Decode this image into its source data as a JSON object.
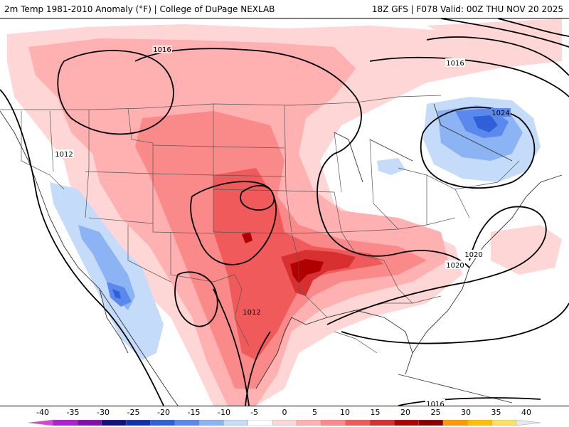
{
  "header": {
    "title_left": "2m Temp 1981-2010 Anomaly (°F) | College of DuPage NEXLAB",
    "title_right": "18Z GFS | F078 Valid: 00Z THU NOV 20 2025"
  },
  "isobar_labels": {
    "nw_1016": "1016",
    "ne_1016": "1016",
    "west_1012": "1012",
    "south_1012": "1012",
    "ne_high_1024": "1024",
    "se_1020_a": "1020",
    "se_1020_b": "1020",
    "south_1016": "1016"
  },
  "colorbar": {
    "ticks": [
      "-40",
      "-35",
      "-30",
      "-25",
      "-20",
      "-15",
      "-10",
      "-5",
      "0",
      "5",
      "10",
      "15",
      "20",
      "25",
      "30",
      "35",
      "40"
    ],
    "colors": [
      "#e040e0",
      "#b020d0",
      "#8010b0",
      "#101080",
      "#1030b0",
      "#3060d8",
      "#5a88ec",
      "#8cb4f4",
      "#c4dcfa",
      "#ffffff",
      "#ffd6d6",
      "#ffb0b0",
      "#fa8a8a",
      "#f05a5a",
      "#d83030",
      "#b00000",
      "#8a0000",
      "#ff9a00",
      "#ffc000",
      "#ffe066",
      "#e8e8e8"
    ]
  }
}
